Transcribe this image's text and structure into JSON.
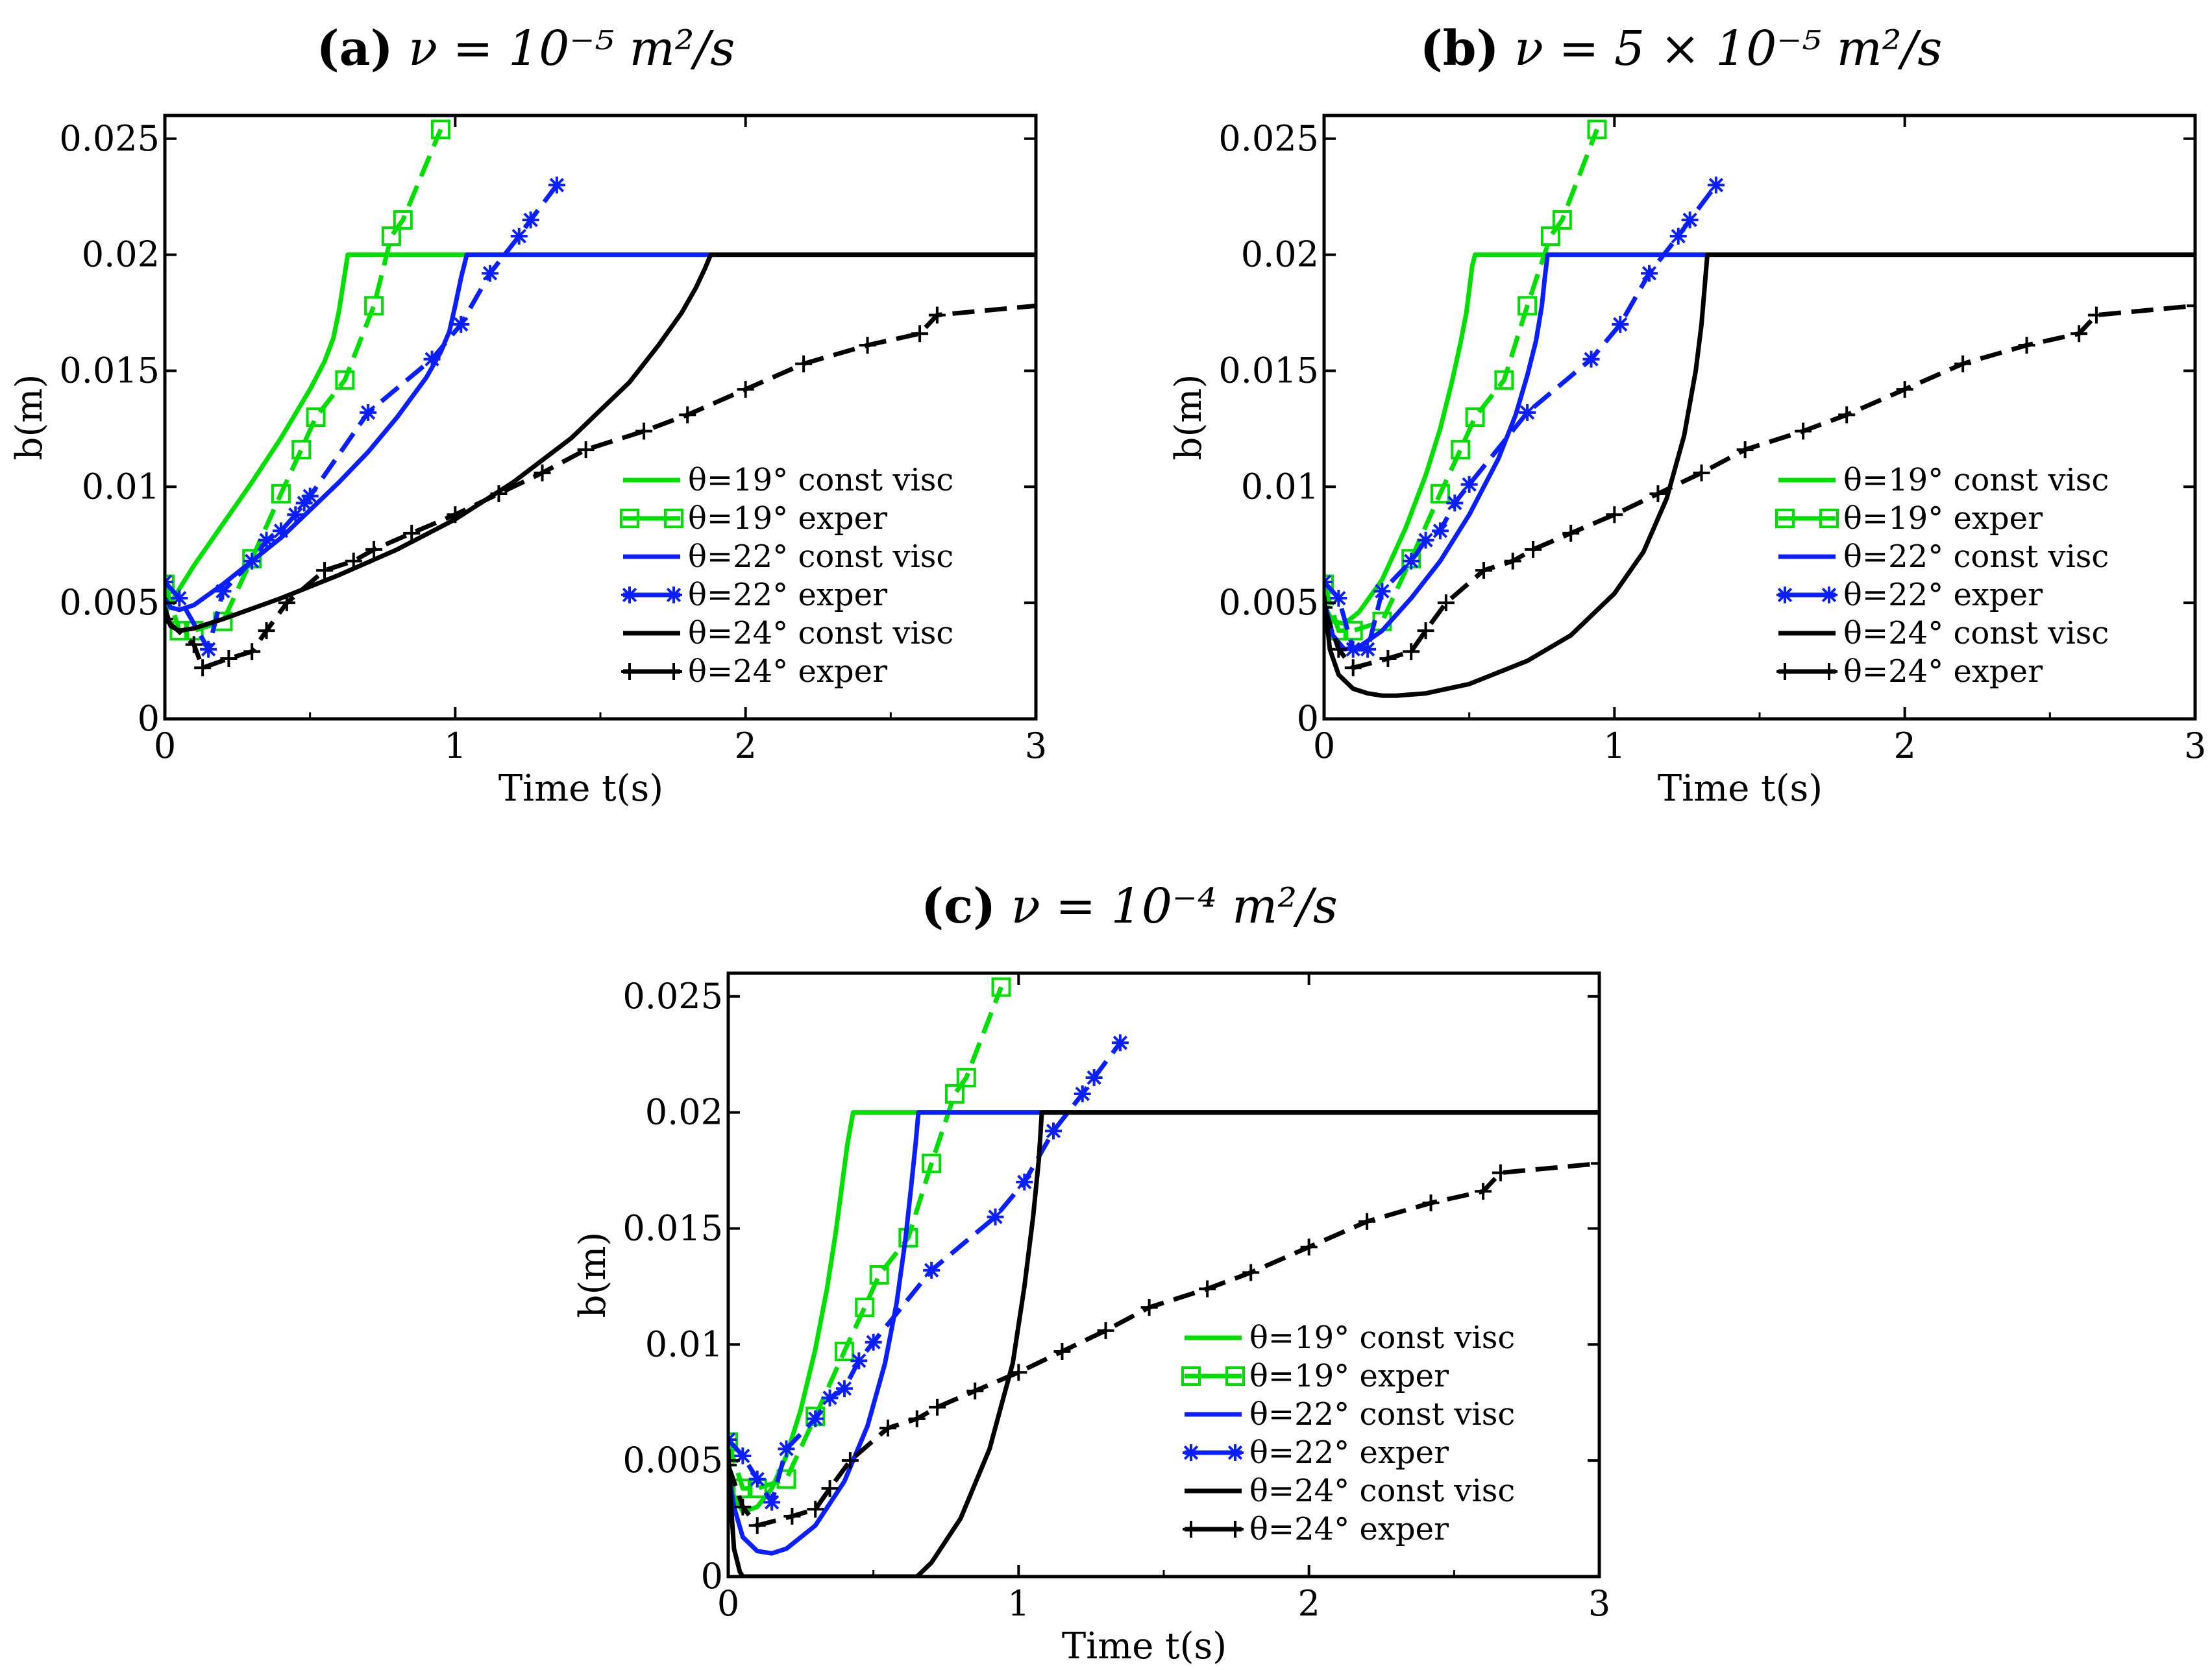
{
  "chart_data": [
    {
      "id": "a",
      "type": "line",
      "title_prefix": "(a)",
      "title_formula": "ν = 10⁻⁵ m²/s",
      "xlabel": "Time t(s)",
      "ylabel": "b(m)",
      "xlim": [
        0,
        3
      ],
      "ylim": [
        0,
        0.026
      ],
      "xticks": [
        0,
        1,
        2,
        3
      ],
      "xtick_labels": [
        "0",
        "1",
        "2",
        "3"
      ],
      "yticks": [
        0,
        0.005,
        0.01,
        0.015,
        0.02,
        0.025
      ],
      "ytick_labels": [
        "0",
        "0.005",
        "0.01",
        "0.015",
        "0.02",
        "0.025"
      ],
      "legend_position": "lower-right",
      "series": [
        {
          "name": "θ=19° const visc",
          "color": "#00e000",
          "dash": "solid",
          "marker": "none",
          "x": [
            0,
            0.02,
            0.06,
            0.1,
            0.2,
            0.3,
            0.4,
            0.5,
            0.55,
            0.58,
            0.6,
            0.62,
            0.63,
            1.04,
            3.0
          ],
          "y": [
            0.0045,
            0.005,
            0.0058,
            0.0066,
            0.0084,
            0.0102,
            0.0121,
            0.0142,
            0.0154,
            0.0164,
            0.0176,
            0.0192,
            0.02,
            0.02,
            0.02
          ]
        },
        {
          "name": "θ=19° exper",
          "color": "#00e000",
          "dash": "dashed",
          "marker": "square",
          "x": [
            0,
            0.05,
            0.1,
            0.2,
            0.3,
            0.4,
            0.47,
            0.52,
            0.62,
            0.72,
            0.78,
            0.82,
            0.95
          ],
          "y": [
            0.0058,
            0.0038,
            0.0038,
            0.0042,
            0.0069,
            0.0097,
            0.0116,
            0.013,
            0.0146,
            0.0178,
            0.0208,
            0.0215,
            0.0254
          ]
        },
        {
          "name": "θ=22° const visc",
          "color": "#0a1eff",
          "dash": "solid",
          "marker": "none",
          "x": [
            0,
            0.02,
            0.05,
            0.1,
            0.2,
            0.3,
            0.4,
            0.5,
            0.6,
            0.7,
            0.8,
            0.9,
            0.95,
            0.98,
            1.0,
            1.02,
            1.04,
            1.88
          ],
          "y": [
            0.0052,
            0.0048,
            0.0047,
            0.0049,
            0.0058,
            0.0068,
            0.0078,
            0.009,
            0.0102,
            0.0115,
            0.013,
            0.0147,
            0.0158,
            0.0167,
            0.0178,
            0.019,
            0.02,
            0.02
          ]
        },
        {
          "name": "θ=22° exper",
          "color": "#0a1eff",
          "dash": "dashed",
          "marker": "star",
          "x": [
            0,
            0.05,
            0.15,
            0.2,
            0.3,
            0.35,
            0.4,
            0.45,
            0.48,
            0.5,
            0.7,
            0.92,
            1.02,
            1.12,
            1.22,
            1.26,
            1.35
          ],
          "y": [
            0.0059,
            0.0052,
            0.003,
            0.0055,
            0.0068,
            0.0077,
            0.0081,
            0.0088,
            0.0093,
            0.0096,
            0.0132,
            0.0155,
            0.017,
            0.0192,
            0.0208,
            0.0215,
            0.023
          ]
        },
        {
          "name": "θ=24° const visc",
          "color": "#000000",
          "dash": "solid",
          "marker": "none",
          "x": [
            0,
            0.02,
            0.05,
            0.1,
            0.2,
            0.4,
            0.6,
            0.8,
            1.0,
            1.2,
            1.4,
            1.6,
            1.7,
            1.78,
            1.83,
            1.86,
            1.88,
            3.0
          ],
          "y": [
            0.0048,
            0.004,
            0.0038,
            0.0039,
            0.0043,
            0.0052,
            0.0062,
            0.0073,
            0.0086,
            0.0102,
            0.0121,
            0.0145,
            0.0161,
            0.0175,
            0.0186,
            0.0194,
            0.02,
            0.02
          ]
        },
        {
          "name": "θ=24° exper",
          "color": "#000000",
          "dash": "dashed",
          "marker": "plus",
          "x": [
            0,
            0.1,
            0.13,
            0.22,
            0.3,
            0.35,
            0.42,
            0.55,
            0.65,
            0.72,
            0.85,
            1.0,
            1.15,
            1.3,
            1.45,
            1.65,
            1.8,
            2.0,
            2.2,
            2.42,
            2.6,
            2.66,
            3.0
          ],
          "y": [
            0.0043,
            0.0032,
            0.0022,
            0.0026,
            0.0029,
            0.0038,
            0.005,
            0.0064,
            0.0068,
            0.0073,
            0.008,
            0.0088,
            0.0097,
            0.0106,
            0.0116,
            0.0124,
            0.0131,
            0.0142,
            0.0153,
            0.0161,
            0.0166,
            0.0174,
            0.0178
          ]
        }
      ]
    },
    {
      "id": "b",
      "type": "line",
      "title_prefix": "(b)",
      "title_formula": "ν = 5 × 10⁻⁵ m²/s",
      "xlabel": "Time t(s)",
      "ylabel": "b(m)",
      "xlim": [
        0,
        3
      ],
      "ylim": [
        0,
        0.026
      ],
      "xticks": [
        0,
        1,
        2,
        3
      ],
      "xtick_labels": [
        "0",
        "1",
        "2",
        "3"
      ],
      "yticks": [
        0,
        0.005,
        0.01,
        0.015,
        0.02,
        0.025
      ],
      "ytick_labels": [
        "0",
        "0.005",
        "0.01",
        "0.015",
        "0.02",
        "0.025"
      ],
      "legend_position": "lower-right",
      "series": [
        {
          "name": "θ=19° const visc",
          "color": "#00e000",
          "dash": "solid",
          "marker": "none",
          "x": [
            0,
            0.03,
            0.07,
            0.12,
            0.2,
            0.28,
            0.35,
            0.4,
            0.44,
            0.47,
            0.49,
            0.5,
            0.51,
            0.52,
            1.04,
            3.0
          ],
          "y": [
            0.0049,
            0.0042,
            0.0041,
            0.0046,
            0.006,
            0.0082,
            0.0105,
            0.0125,
            0.0145,
            0.0162,
            0.0175,
            0.0185,
            0.0195,
            0.02,
            0.02,
            0.02
          ]
        },
        {
          "name": "θ=19° exper",
          "color": "#00e000",
          "dash": "dashed",
          "marker": "square",
          "x": [
            0,
            0.05,
            0.1,
            0.2,
            0.3,
            0.4,
            0.47,
            0.52,
            0.62,
            0.7,
            0.78,
            0.82,
            0.94
          ],
          "y": [
            0.0058,
            0.0038,
            0.0038,
            0.0042,
            0.0069,
            0.0097,
            0.0116,
            0.013,
            0.0146,
            0.0178,
            0.0208,
            0.0215,
            0.0254
          ]
        },
        {
          "name": "θ=22° const visc",
          "color": "#0a1eff",
          "dash": "solid",
          "marker": "none",
          "x": [
            0,
            0.03,
            0.07,
            0.12,
            0.2,
            0.3,
            0.4,
            0.5,
            0.6,
            0.66,
            0.7,
            0.73,
            0.75,
            0.76,
            0.77,
            1.32
          ],
          "y": [
            0.0051,
            0.0036,
            0.003,
            0.0031,
            0.0038,
            0.0052,
            0.0068,
            0.0088,
            0.0112,
            0.0131,
            0.0148,
            0.0163,
            0.0178,
            0.019,
            0.02,
            0.02
          ]
        },
        {
          "name": "θ=22° exper",
          "color": "#0a1eff",
          "dash": "dashed",
          "marker": "star",
          "x": [
            0,
            0.05,
            0.1,
            0.15,
            0.2,
            0.3,
            0.35,
            0.4,
            0.45,
            0.5,
            0.7,
            0.92,
            1.02,
            1.12,
            1.22,
            1.26,
            1.35
          ],
          "y": [
            0.0059,
            0.0052,
            0.003,
            0.003,
            0.0055,
            0.0068,
            0.0077,
            0.0081,
            0.0093,
            0.0101,
            0.0132,
            0.0155,
            0.017,
            0.0192,
            0.0208,
            0.0215,
            0.023
          ]
        },
        {
          "name": "θ=24° const visc",
          "color": "#000000",
          "dash": "solid",
          "marker": "none",
          "x": [
            0,
            0.02,
            0.05,
            0.1,
            0.15,
            0.2,
            0.25,
            0.35,
            0.5,
            0.7,
            0.85,
            1.0,
            1.1,
            1.18,
            1.24,
            1.28,
            1.3,
            1.31,
            1.32,
            3.0
          ],
          "y": [
            0.0053,
            0.003,
            0.0019,
            0.0013,
            0.0011,
            0.001,
            0.001,
            0.0011,
            0.0015,
            0.0025,
            0.0036,
            0.0054,
            0.0072,
            0.0095,
            0.0122,
            0.015,
            0.017,
            0.0185,
            0.02,
            0.02
          ]
        },
        {
          "name": "θ=24° exper",
          "color": "#000000",
          "dash": "dashed",
          "marker": "plus",
          "x": [
            0,
            0.05,
            0.1,
            0.22,
            0.3,
            0.35,
            0.42,
            0.55,
            0.65,
            0.72,
            0.85,
            1.0,
            1.15,
            1.3,
            1.45,
            1.65,
            1.8,
            2.0,
            2.2,
            2.42,
            2.6,
            2.66,
            3.0
          ],
          "y": [
            0.0048,
            0.003,
            0.0022,
            0.0026,
            0.0029,
            0.0038,
            0.005,
            0.0064,
            0.0068,
            0.0073,
            0.008,
            0.0088,
            0.0097,
            0.0106,
            0.0116,
            0.0124,
            0.0131,
            0.0142,
            0.0153,
            0.0161,
            0.0166,
            0.0174,
            0.0178
          ]
        }
      ]
    },
    {
      "id": "c",
      "type": "line",
      "title_prefix": "(c)",
      "title_formula": "ν = 10⁻⁴ m²/s",
      "xlabel": "Time t(s)",
      "ylabel": "b(m)",
      "xlim": [
        0,
        3
      ],
      "ylim": [
        0,
        0.026
      ],
      "xticks": [
        0,
        1,
        2,
        3
      ],
      "xtick_labels": [
        "0",
        "1",
        "2",
        "3"
      ],
      "yticks": [
        0,
        0.005,
        0.01,
        0.015,
        0.02,
        0.025
      ],
      "ytick_labels": [
        "0",
        "0.005",
        "0.01",
        "0.015",
        "0.02",
        "0.025"
      ],
      "legend_position": "lower-right",
      "series": [
        {
          "name": "θ=19° const visc",
          "color": "#00e000",
          "dash": "solid",
          "marker": "none",
          "x": [
            0,
            0.02,
            0.05,
            0.1,
            0.15,
            0.2,
            0.25,
            0.3,
            0.34,
            0.37,
            0.39,
            0.41,
            0.43,
            0.65,
            3.0
          ],
          "y": [
            0.0048,
            0.0034,
            0.0028,
            0.003,
            0.0038,
            0.0052,
            0.0072,
            0.0098,
            0.0124,
            0.0148,
            0.0167,
            0.0186,
            0.02,
            0.02,
            0.02
          ]
        },
        {
          "name": "θ=19° exper",
          "color": "#00e000",
          "dash": "dashed",
          "marker": "square",
          "x": [
            0,
            0.05,
            0.1,
            0.2,
            0.3,
            0.4,
            0.47,
            0.52,
            0.62,
            0.7,
            0.78,
            0.82,
            0.94
          ],
          "y": [
            0.0058,
            0.0038,
            0.0038,
            0.0042,
            0.0069,
            0.0097,
            0.0116,
            0.013,
            0.0146,
            0.0178,
            0.0208,
            0.0215,
            0.0254
          ]
        },
        {
          "name": "θ=22° const visc",
          "color": "#0a1eff",
          "dash": "solid",
          "marker": "none",
          "x": [
            0,
            0.02,
            0.05,
            0.1,
            0.15,
            0.2,
            0.3,
            0.4,
            0.48,
            0.54,
            0.58,
            0.61,
            0.63,
            0.645,
            0.655,
            1.08
          ],
          "y": [
            0.0046,
            0.003,
            0.0017,
            0.0011,
            0.001,
            0.0012,
            0.0022,
            0.0041,
            0.0065,
            0.0092,
            0.0118,
            0.0145,
            0.0168,
            0.0186,
            0.02,
            0.02
          ]
        },
        {
          "name": "θ=22° exper",
          "color": "#0a1eff",
          "dash": "dashed",
          "marker": "star",
          "x": [
            0,
            0.05,
            0.1,
            0.15,
            0.2,
            0.3,
            0.35,
            0.4,
            0.45,
            0.5,
            0.7,
            0.92,
            1.02,
            1.12,
            1.22,
            1.26,
            1.35
          ],
          "y": [
            0.0059,
            0.0052,
            0.0042,
            0.0032,
            0.0055,
            0.0068,
            0.0077,
            0.0081,
            0.0093,
            0.0101,
            0.0132,
            0.0155,
            0.017,
            0.0192,
            0.0208,
            0.0215,
            0.023
          ]
        },
        {
          "name": "θ=24° const visc",
          "color": "#000000",
          "dash": "solid",
          "marker": "none",
          "x": [
            0,
            0.01,
            0.02,
            0.04,
            0.05,
            0.65,
            0.7,
            0.8,
            0.9,
            0.98,
            1.02,
            1.05,
            1.07,
            1.08,
            3.0
          ],
          "y": [
            0.0055,
            0.003,
            0.0012,
            0.0002,
            0.0,
            0.0,
            0.0006,
            0.0025,
            0.0055,
            0.0092,
            0.0125,
            0.0155,
            0.018,
            0.02,
            0.02
          ]
        },
        {
          "name": "θ=24° exper",
          "color": "#000000",
          "dash": "dashed",
          "marker": "plus",
          "x": [
            0,
            0.05,
            0.1,
            0.22,
            0.3,
            0.35,
            0.42,
            0.55,
            0.65,
            0.72,
            0.85,
            1.0,
            1.15,
            1.3,
            1.45,
            1.65,
            1.8,
            2.0,
            2.2,
            2.42,
            2.6,
            2.66,
            3.0
          ],
          "y": [
            0.0048,
            0.003,
            0.0022,
            0.0026,
            0.0029,
            0.0038,
            0.005,
            0.0064,
            0.0068,
            0.0073,
            0.008,
            0.0088,
            0.0097,
            0.0106,
            0.0116,
            0.0124,
            0.0131,
            0.0142,
            0.0153,
            0.0161,
            0.0166,
            0.0174,
            0.0178
          ]
        }
      ]
    }
  ]
}
